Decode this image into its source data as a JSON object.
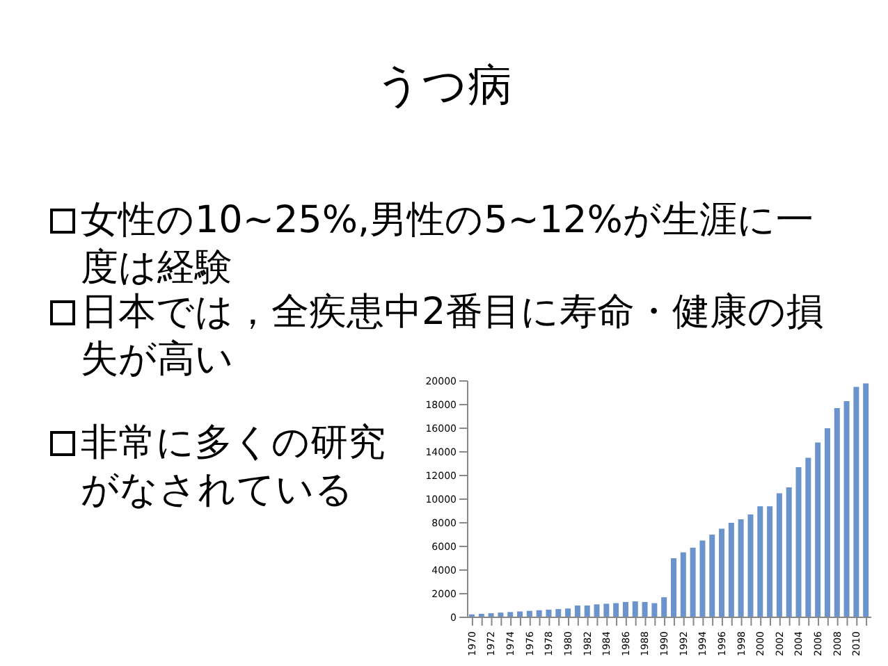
{
  "chart_data": {
    "type": "bar",
    "title": "うつ病",
    "annotations": [
      "女性の10~25%,男性の5~12%が生涯に一度は経験",
      "日本では，全疾患中2番目に寿命・健康の損失が高い",
      "非常に多くの研究がなされている"
    ],
    "categories": [
      "1970",
      null,
      "1972",
      null,
      "1974",
      null,
      "1976",
      null,
      "1978",
      null,
      "1980",
      null,
      "1982",
      null,
      "1984",
      null,
      "1986",
      null,
      "1988",
      null,
      "1990",
      null,
      "1992",
      null,
      "1994",
      null,
      "1996",
      null,
      "1998",
      null,
      "2000",
      null,
      "2002",
      null,
      "2004",
      null,
      "2006",
      null,
      "2008",
      null,
      "2010",
      null
    ],
    "values": [
      250,
      300,
      350,
      400,
      450,
      500,
      550,
      600,
      650,
      700,
      750,
      1000,
      1000,
      1100,
      1150,
      1200,
      1300,
      1350,
      1300,
      1200,
      1700,
      5000,
      5500,
      5900,
      6500,
      7000,
      7500,
      8000,
      8300,
      8700,
      9400,
      9400,
      10500,
      11000,
      12700,
      13500,
      14800,
      16000,
      17700,
      18300,
      19500,
      19800
    ],
    "color": "#6b93cc",
    "ylim": [
      0,
      20000
    ],
    "yticks": [
      0,
      2000,
      4000,
      6000,
      8000,
      10000,
      12000,
      14000,
      16000,
      18000,
      20000
    ],
    "grid": false,
    "legend": false
  }
}
